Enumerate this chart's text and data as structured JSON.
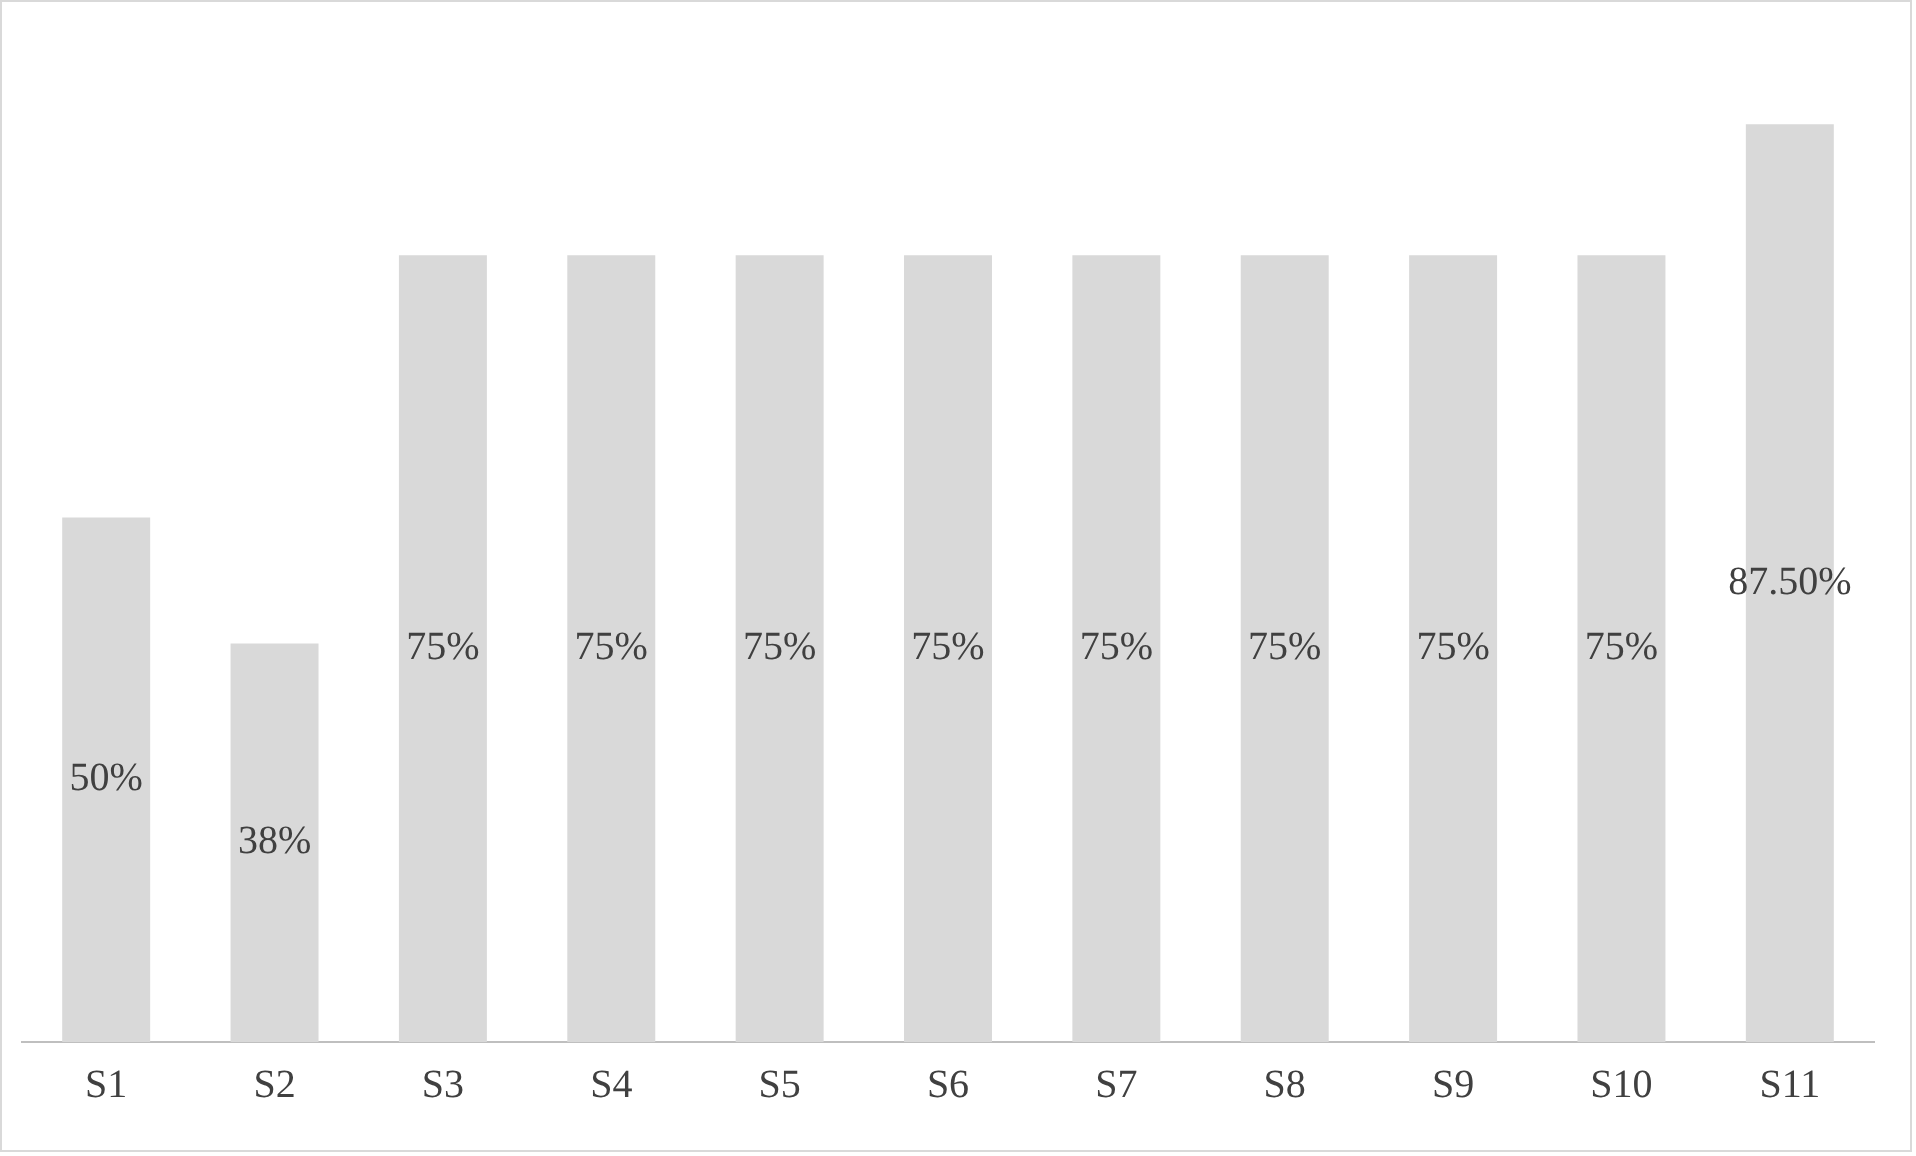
{
  "chart_data": {
    "type": "bar",
    "categories": [
      "S1",
      "S2",
      "S3",
      "S4",
      "S5",
      "S6",
      "S7",
      "S8",
      "S9",
      "S10",
      "S11"
    ],
    "values": [
      50,
      38,
      75,
      75,
      75,
      75,
      75,
      75,
      75,
      75,
      87.5
    ],
    "value_labels": [
      "50%",
      "38%",
      "75%",
      "75%",
      "75%",
      "75%",
      "75%",
      "75%",
      "75%",
      "75%",
      "87.50%"
    ],
    "color": "#d9d9d9",
    "grid": false,
    "legend": false
  }
}
